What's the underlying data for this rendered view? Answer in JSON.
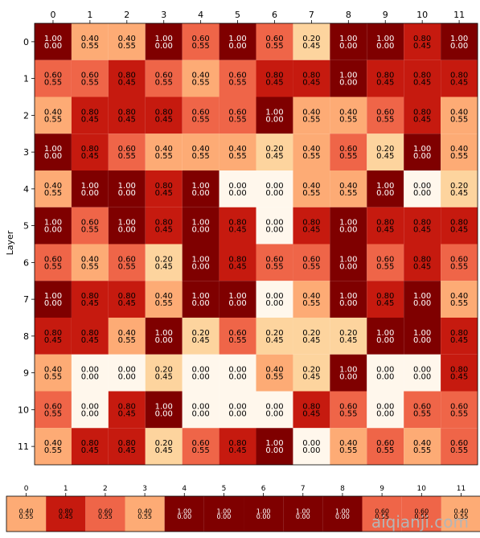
{
  "chart_data": [
    {
      "type": "heatmap",
      "ylabel": "Layer",
      "x_ticks": [
        "0",
        "1",
        "2",
        "3",
        "4",
        "5",
        "6",
        "7",
        "8",
        "9",
        "10",
        "11"
      ],
      "y_ticks": [
        "0",
        "1",
        "2",
        "3",
        "4",
        "5",
        "6",
        "7",
        "8",
        "9",
        "10",
        "11"
      ],
      "colormap": "OrRd",
      "vmin": 0.0,
      "vmax": 1.0,
      "color_value": "first",
      "cells": [
        [
          [
            "1.00",
            "0.00"
          ],
          [
            "0.40",
            "0.55"
          ],
          [
            "0.40",
            "0.55"
          ],
          [
            "1.00",
            "0.00"
          ],
          [
            "0.60",
            "0.55"
          ],
          [
            "1.00",
            "0.00"
          ],
          [
            "0.60",
            "0.55"
          ],
          [
            "0.20",
            "0.45"
          ],
          [
            "1.00",
            "0.00"
          ],
          [
            "1.00",
            "0.00"
          ],
          [
            "0.80",
            "0.45"
          ],
          [
            "1.00",
            "0.00"
          ]
        ],
        [
          [
            "0.60",
            "0.55"
          ],
          [
            "0.60",
            "0.55"
          ],
          [
            "0.80",
            "0.45"
          ],
          [
            "0.60",
            "0.55"
          ],
          [
            "0.40",
            "0.55"
          ],
          [
            "0.60",
            "0.55"
          ],
          [
            "0.80",
            "0.45"
          ],
          [
            "0.80",
            "0.45"
          ],
          [
            "1.00",
            "0.00"
          ],
          [
            "0.80",
            "0.45"
          ],
          [
            "0.80",
            "0.45"
          ],
          [
            "0.80",
            "0.45"
          ]
        ],
        [
          [
            "0.40",
            "0.55"
          ],
          [
            "0.80",
            "0.45"
          ],
          [
            "0.80",
            "0.45"
          ],
          [
            "0.80",
            "0.45"
          ],
          [
            "0.60",
            "0.55"
          ],
          [
            "0.60",
            "0.55"
          ],
          [
            "1.00",
            "0.00"
          ],
          [
            "0.40",
            "0.55"
          ],
          [
            "0.40",
            "0.55"
          ],
          [
            "0.60",
            "0.55"
          ],
          [
            "0.80",
            "0.45"
          ],
          [
            "0.40",
            "0.55"
          ]
        ],
        [
          [
            "1.00",
            "0.00"
          ],
          [
            "0.80",
            "0.45"
          ],
          [
            "0.60",
            "0.55"
          ],
          [
            "0.40",
            "0.55"
          ],
          [
            "0.40",
            "0.55"
          ],
          [
            "0.40",
            "0.55"
          ],
          [
            "0.20",
            "0.45"
          ],
          [
            "0.40",
            "0.55"
          ],
          [
            "0.60",
            "0.55"
          ],
          [
            "0.20",
            "0.45"
          ],
          [
            "1.00",
            "0.00"
          ],
          [
            "0.40",
            "0.55"
          ]
        ],
        [
          [
            "0.40",
            "0.55"
          ],
          [
            "1.00",
            "0.00"
          ],
          [
            "1.00",
            "0.00"
          ],
          [
            "0.80",
            "0.45"
          ],
          [
            "1.00",
            "0.00"
          ],
          [
            "0.00",
            "0.00"
          ],
          [
            "0.00",
            "0.00"
          ],
          [
            "0.40",
            "0.55"
          ],
          [
            "0.40",
            "0.55"
          ],
          [
            "1.00",
            "0.00"
          ],
          [
            "0.00",
            "0.00"
          ],
          [
            "0.20",
            "0.45"
          ]
        ],
        [
          [
            "1.00",
            "0.00"
          ],
          [
            "0.60",
            "0.55"
          ],
          [
            "1.00",
            "0.00"
          ],
          [
            "0.80",
            "0.45"
          ],
          [
            "1.00",
            "0.00"
          ],
          [
            "0.80",
            "0.45"
          ],
          [
            "0.00",
            "0.00"
          ],
          [
            "0.80",
            "0.45"
          ],
          [
            "1.00",
            "0.00"
          ],
          [
            "0.80",
            "0.45"
          ],
          [
            "0.80",
            "0.45"
          ],
          [
            "0.80",
            "0.45"
          ]
        ],
        [
          [
            "0.60",
            "0.55"
          ],
          [
            "0.40",
            "0.55"
          ],
          [
            "0.60",
            "0.55"
          ],
          [
            "0.20",
            "0.45"
          ],
          [
            "1.00",
            "0.00"
          ],
          [
            "0.80",
            "0.45"
          ],
          [
            "0.60",
            "0.55"
          ],
          [
            "0.60",
            "0.55"
          ],
          [
            "1.00",
            "0.00"
          ],
          [
            "0.60",
            "0.55"
          ],
          [
            "0.80",
            "0.45"
          ],
          [
            "0.60",
            "0.55"
          ]
        ],
        [
          [
            "1.00",
            "0.00"
          ],
          [
            "0.80",
            "0.45"
          ],
          [
            "0.80",
            "0.45"
          ],
          [
            "0.40",
            "0.55"
          ],
          [
            "1.00",
            "0.00"
          ],
          [
            "1.00",
            "0.00"
          ],
          [
            "0.00",
            "0.00"
          ],
          [
            "0.40",
            "0.55"
          ],
          [
            "1.00",
            "0.00"
          ],
          [
            "0.80",
            "0.45"
          ],
          [
            "1.00",
            "0.00"
          ],
          [
            "0.40",
            "0.55"
          ]
        ],
        [
          [
            "0.80",
            "0.45"
          ],
          [
            "0.80",
            "0.45"
          ],
          [
            "0.40",
            "0.55"
          ],
          [
            "1.00",
            "0.00"
          ],
          [
            "0.20",
            "0.45"
          ],
          [
            "0.60",
            "0.55"
          ],
          [
            "0.20",
            "0.45"
          ],
          [
            "0.20",
            "0.45"
          ],
          [
            "0.20",
            "0.45"
          ],
          [
            "1.00",
            "0.00"
          ],
          [
            "1.00",
            "0.00"
          ],
          [
            "0.80",
            "0.45"
          ]
        ],
        [
          [
            "0.40",
            "0.55"
          ],
          [
            "0.00",
            "0.00"
          ],
          [
            "0.00",
            "0.00"
          ],
          [
            "0.20",
            "0.45"
          ],
          [
            "0.00",
            "0.00"
          ],
          [
            "0.00",
            "0.00"
          ],
          [
            "0.40",
            "0.55"
          ],
          [
            "0.20",
            "0.45"
          ],
          [
            "1.00",
            "0.00"
          ],
          [
            "0.00",
            "0.00"
          ],
          [
            "0.00",
            "0.00"
          ],
          [
            "0.80",
            "0.45"
          ]
        ],
        [
          [
            "0.60",
            "0.55"
          ],
          [
            "0.00",
            "0.00"
          ],
          [
            "0.80",
            "0.45"
          ],
          [
            "1.00",
            "0.00"
          ],
          [
            "0.00",
            "0.00"
          ],
          [
            "0.00",
            "0.00"
          ],
          [
            "0.00",
            "0.00"
          ],
          [
            "0.80",
            "0.45"
          ],
          [
            "0.60",
            "0.55"
          ],
          [
            "0.00",
            "0.00"
          ],
          [
            "0.60",
            "0.55"
          ],
          [
            "0.60",
            "0.55"
          ]
        ],
        [
          [
            "0.40",
            "0.55"
          ],
          [
            "0.80",
            "0.45"
          ],
          [
            "0.80",
            "0.45"
          ],
          [
            "0.20",
            "0.45"
          ],
          [
            "0.60",
            "0.55"
          ],
          [
            "0.80",
            "0.45"
          ],
          [
            "1.00",
            "0.00"
          ],
          [
            "0.00",
            "0.00"
          ],
          [
            "0.40",
            "0.55"
          ],
          [
            "0.60",
            "0.55"
          ],
          [
            "0.40",
            "0.55"
          ],
          [
            "0.60",
            "0.55"
          ]
        ]
      ]
    },
    {
      "type": "heatmap",
      "x_ticks": [
        "0",
        "1",
        "2",
        "3",
        "4",
        "5",
        "6",
        "7",
        "8",
        "9",
        "10",
        "11"
      ],
      "colormap": "OrRd",
      "vmin": 0.0,
      "vmax": 1.0,
      "color_value": "first",
      "cells": [
        [
          [
            "0.40",
            "0.55"
          ],
          [
            "0.80",
            "0.45"
          ],
          [
            "0.60",
            "0.55"
          ],
          [
            "0.40",
            "0.55"
          ],
          [
            "1.00",
            "0.00"
          ],
          [
            "1.00",
            "0.00"
          ],
          [
            "1.00",
            "0.00"
          ],
          [
            "1.00",
            "0.00"
          ],
          [
            "1.00",
            "0.00"
          ],
          [
            "0.60",
            "0.55"
          ],
          [
            "0.60",
            "0.55"
          ],
          [
            "0.40",
            "0.55"
          ]
        ]
      ]
    }
  ],
  "watermark": "aiqianji.com",
  "colors": {
    "v0_0": "#fff7ec",
    "v0_2": "#fdd49e",
    "v0_4": "#fdab75",
    "v0_6": "#ef6548",
    "v0_8": "#c61a0f",
    "v1_0": "#7f0000"
  }
}
